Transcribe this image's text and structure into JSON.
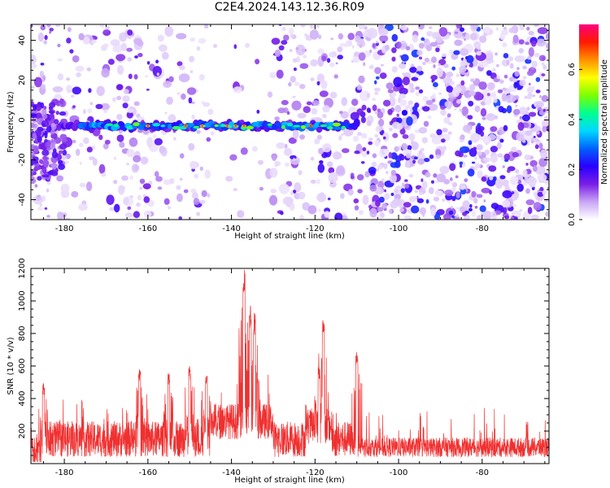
{
  "title": "C2E4.2024.143.12.36.R09",
  "chart_data": [
    {
      "type": "heatmap",
      "title": "C2E4.2024.143.12.36.R09",
      "xlabel": "Height of straight line (km)",
      "ylabel": "Frequency (Hz)",
      "xlim": [
        -188,
        -64
      ],
      "ylim": [
        -50,
        48
      ],
      "xticks": [
        -180,
        -160,
        -140,
        -120,
        -100,
        -80
      ],
      "yticks": [
        -40,
        -20,
        0,
        20,
        40
      ],
      "grid": false,
      "description_of_data": "Energy band concentrated near 0 Hz spanning -176 to -111 km; sparse noise at low heights, dense noise above -110 km",
      "band": {
        "x_start": -176,
        "x_end": -111,
        "y_center": -3,
        "y_halfwidth": 4,
        "peak_amplitude": 0.7
      },
      "colorbar": {
        "label": "Normalized spectral amplitude",
        "range": [
          0.0,
          0.78
        ],
        "ticks": [
          0.0,
          0.2,
          0.4,
          0.6
        ],
        "colors": [
          "#ffffff",
          "#c9a6f5",
          "#7a1fe6",
          "#2a00ff",
          "#0060ff",
          "#00d8ff",
          "#00ff90",
          "#7cff00",
          "#ffff00",
          "#ff9000",
          "#ff1a00",
          "#ff0080"
        ]
      }
    },
    {
      "type": "line",
      "xlabel": "Height of straight line (km)",
      "ylabel": "SNR (10 * v/v)",
      "xlim": [
        -188,
        -64
      ],
      "ylim": [
        0,
        1200
      ],
      "xticks": [
        -180,
        -160,
        -140,
        -120,
        -100,
        -80
      ],
      "yticks": [
        200,
        400,
        600,
        800,
        1000,
        1200
      ],
      "grid": false,
      "color": "#f03030",
      "peaks": [
        {
          "x": -137,
          "y": 1200
        },
        {
          "x": -135.5,
          "y": 980
        },
        {
          "x": -134.5,
          "y": 930
        },
        {
          "x": -118,
          "y": 920
        },
        {
          "x": -119,
          "y": 600
        },
        {
          "x": -110,
          "y": 700
        },
        {
          "x": -185,
          "y": 500
        },
        {
          "x": -162,
          "y": 600
        },
        {
          "x": -155,
          "y": 560
        },
        {
          "x": -150,
          "y": 600
        },
        {
          "x": -146,
          "y": 560
        }
      ],
      "baseline": 100
    }
  ]
}
